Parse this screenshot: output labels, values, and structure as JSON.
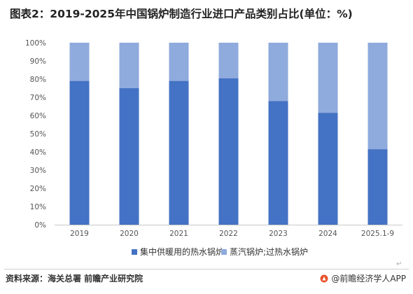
{
  "title": "图表2：2019-2025年中国锅炉制造行业进口产品类别占比(单位：%)",
  "chart_data": {
    "type": "bar",
    "stacked": true,
    "categories": [
      "2019",
      "2020",
      "2021",
      "2022",
      "2023",
      "2024",
      "2025.1-9"
    ],
    "series": [
      {
        "name": "集中供暖用的热水锅炉",
        "color": "#4472c4",
        "values": [
          79,
          75,
          79,
          80.5,
          68,
          61.5,
          41.5
        ]
      },
      {
        "name": "蒸汽锅炉;过热水锅炉",
        "color": "#8faadc",
        "values": [
          21,
          25,
          21,
          19.5,
          32,
          38.5,
          58.5
        ]
      }
    ],
    "yticks": [
      "0%",
      "10%",
      "20%",
      "30%",
      "40%",
      "50%",
      "60%",
      "70%",
      "80%",
      "90%",
      "100%"
    ],
    "ylim": [
      0,
      100
    ],
    "legend_position": "bottom",
    "grid": false
  },
  "footer": {
    "source": "资料来源：海关总署 前瞻产业研究院",
    "brand": "@前瞻经济学人APP",
    "return_mark": "↵"
  }
}
